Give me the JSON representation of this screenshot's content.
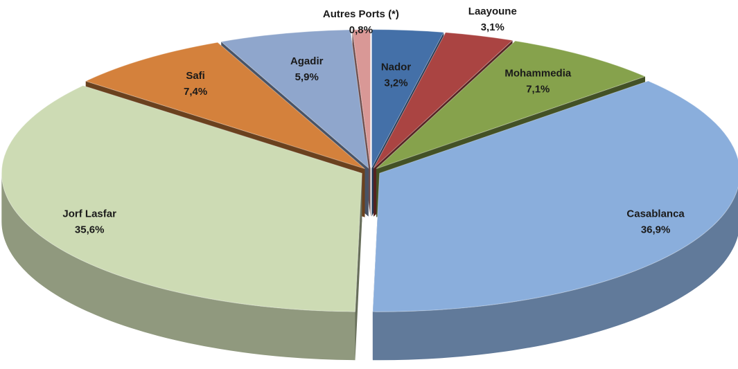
{
  "chart_data": {
    "type": "pie",
    "categories": [
      "Nador",
      "Laayoune",
      "Mohammedia",
      "Casablanca",
      "Jorf Lasfar",
      "Safi",
      "Agadir",
      "Autres Ports (*)"
    ],
    "values": [
      3.2,
      3.1,
      7.1,
      36.9,
      35.6,
      7.4,
      5.9,
      0.8
    ],
    "value_labels": [
      "3,2%",
      "3,1%",
      "7,1%",
      "36,9%",
      "35,6%",
      "7,4%",
      "5,9%",
      "0,8%"
    ],
    "colors": [
      "#4470a8",
      "#aa4442",
      "#86a24c",
      "#8aaedc",
      "#cddbb4",
      "#d4813c",
      "#8fa6cc",
      "#d99896"
    ]
  }
}
